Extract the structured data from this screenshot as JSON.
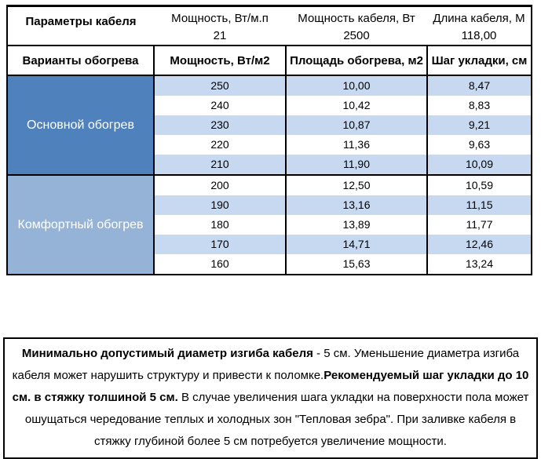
{
  "page": {
    "background": "#ffffff",
    "border_color": "#000000"
  },
  "cable_params": {
    "title": "Параметры кабеля",
    "items": [
      {
        "label": "Мощность, Вт/м.п",
        "value": "21"
      },
      {
        "label": "Мощность кабеля, Вт",
        "value": "2500"
      },
      {
        "label": "Длина кабеля, М",
        "value": "118,00"
      }
    ]
  },
  "heating_table": {
    "columns": [
      "Варианты обогрева",
      "Мощность, Вт/м2",
      "Площадь обогрева, м2",
      "Шаг укладки, см"
    ],
    "band_color": "#c6d9f1",
    "sections": [
      {
        "name": "Основной обогрев",
        "color": "#4f81bd",
        "rows": [
          [
            "250",
            "10,00",
            "8,47"
          ],
          [
            "240",
            "10,42",
            "8,83"
          ],
          [
            "230",
            "10,87",
            "9,21"
          ],
          [
            "220",
            "11,36",
            "9,63"
          ],
          [
            "210",
            "11,90",
            "10,09"
          ]
        ]
      },
      {
        "name": "Комфортный обогрев",
        "color": "#95b3d7",
        "rows": [
          [
            "200",
            "12,50",
            "10,59"
          ],
          [
            "190",
            "13,16",
            "11,15"
          ],
          [
            "180",
            "13,89",
            "11,77"
          ],
          [
            "170",
            "14,71",
            "12,46"
          ],
          [
            "160",
            "15,63",
            "13,24"
          ]
        ]
      }
    ]
  },
  "note": {
    "segments": [
      {
        "text": "Минимально допустимый диаметр изгиба кабеля",
        "bold": true
      },
      {
        "text": " - 5 см.  Уменьшение диаметра изгиба кабеля может нарушить структуру и привести к поломке.",
        "bold": false
      },
      {
        "text": "Рекомендуемый шаг укладки до 10 см. в стяжку толшиной 5 см.",
        "bold": true
      },
      {
        "text": " В  случае увеличения шага укладки на поверхности пола может ошущаться чередование теплых и холодных зон \"Тепловая зебра\". При заливке кабеля в стяжку глубиной более 5 см потребуется увеличение мощности.",
        "bold": false
      }
    ]
  }
}
